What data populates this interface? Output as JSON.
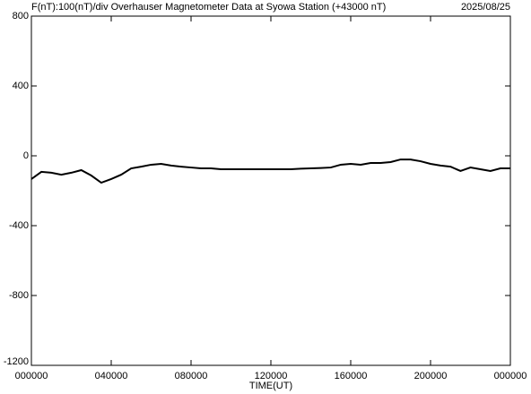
{
  "chart_data": {
    "type": "line",
    "title": "F(nT):100(nT)/div  Overhauser Magnetometer Data at Syowa Station (+43000 nT)",
    "date": "2025/08/25",
    "x_label": "TIME(UT)",
    "xlim": [
      0,
      24
    ],
    "xticks": [
      {
        "value": 0,
        "label": "000000"
      },
      {
        "value": 4,
        "label": "040000"
      },
      {
        "value": 8,
        "label": "080000"
      },
      {
        "value": 12,
        "label": "120000"
      },
      {
        "value": 16,
        "label": "160000"
      },
      {
        "value": 20,
        "label": "200000"
      },
      {
        "value": 24,
        "label": "000000"
      }
    ],
    "ylim": [
      -1200,
      800
    ],
    "yticks": [
      -1200,
      -800,
      -400,
      0,
      400,
      800
    ],
    "x": [
      0,
      0.5,
      1,
      1.5,
      2,
      2.5,
      3,
      3.5,
      4,
      4.5,
      5,
      5.5,
      6,
      6.5,
      7,
      7.5,
      8,
      8.5,
      9,
      9.5,
      10,
      10.5,
      11,
      11.5,
      12,
      12.5,
      13,
      13.5,
      14,
      14.5,
      15,
      15.5,
      16,
      16.5,
      17,
      17.5,
      18,
      18.5,
      19,
      19.5,
      20,
      20.5,
      21,
      21.5,
      22,
      22.5,
      23,
      23.5,
      24
    ],
    "series": [
      {
        "color": "#000000",
        "values": [
          -133,
          -92,
          -97,
          -108,
          -97,
          -82,
          -113,
          -154,
          -133,
          -108,
          -72,
          -62,
          -51,
          -46,
          -56,
          -62,
          -67,
          -72,
          -72,
          -77,
          -77,
          -77,
          -77,
          -77,
          -77,
          -77,
          -77,
          -74,
          -72,
          -70,
          -67,
          -51,
          -46,
          -51,
          -41,
          -41,
          -36,
          -21,
          -21,
          -31,
          -46,
          -56,
          -62,
          -87,
          -67,
          -77,
          -87,
          -72,
          -72
        ]
      }
    ]
  }
}
